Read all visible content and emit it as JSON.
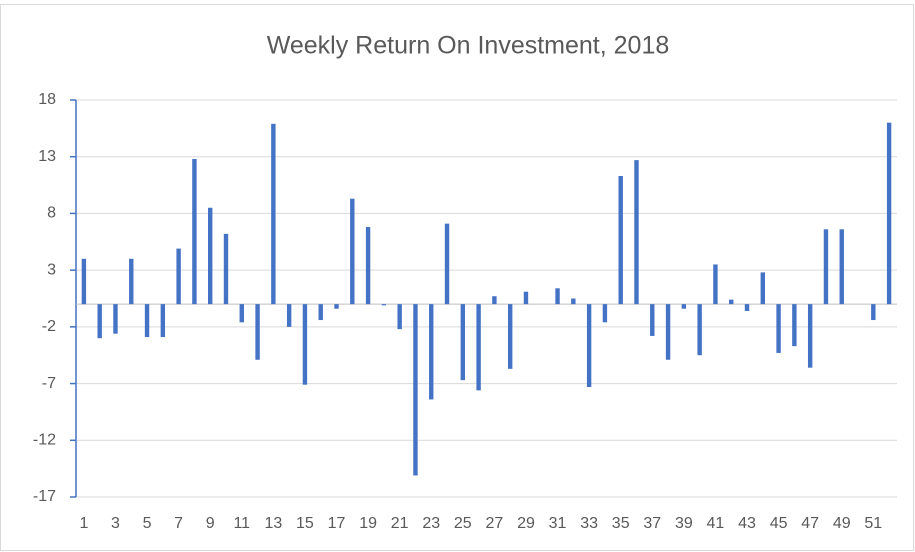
{
  "chart_data": {
    "type": "bar",
    "title": "Weekly Return On Investment, 2018",
    "categories": [
      "1",
      null,
      "3",
      null,
      "5",
      null,
      "7",
      null,
      "9",
      null,
      "11",
      null,
      "13",
      null,
      "15",
      null,
      "17",
      null,
      "19",
      null,
      "21",
      null,
      "23",
      null,
      "25",
      null,
      "27",
      null,
      "29",
      null,
      "31",
      null,
      "33",
      null,
      "35",
      null,
      "37",
      null,
      "39",
      null,
      "41",
      null,
      "43",
      null,
      "45",
      null,
      "47",
      null,
      "49",
      null,
      "51",
      null
    ],
    "values": [
      4,
      -3,
      -2.6,
      4,
      -2.9,
      -2.9,
      4.9,
      12.8,
      8.5,
      6.2,
      -1.6,
      -4.9,
      15.9,
      -2,
      -7.1,
      -1.4,
      -0.4,
      9.3,
      6.8,
      -0.1,
      -2.2,
      -15.1,
      -8.4,
      7.1,
      -6.7,
      -7.6,
      0.7,
      -5.7,
      1.1,
      0,
      1.4,
      0.5,
      -7.3,
      -1.6,
      11.3,
      12.7,
      -2.8,
      -4.9,
      -0.4,
      -4.5,
      3.5,
      0.4,
      -0.6,
      2.8,
      -4.3,
      -3.7,
      -5.6,
      6.6,
      6.6,
      0,
      -1.4,
      16
    ],
    "color": "#4472c4",
    "ylim": [
      -17,
      18
    ],
    "yticks": [
      -17,
      -12,
      -7,
      -2,
      3,
      8,
      13,
      18
    ],
    "grid": true
  }
}
